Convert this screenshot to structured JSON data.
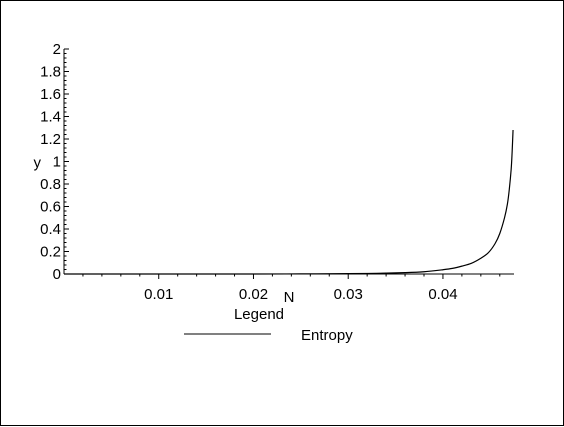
{
  "chart_data": {
    "type": "line",
    "xlabel": "N",
    "ylabel": "y",
    "xlim": [
      0,
      0.0475
    ],
    "ylim": [
      0,
      2
    ],
    "x_ticks": [
      0.01,
      0.02,
      0.03,
      0.04
    ],
    "x_tick_labels": [
      "0.01",
      "0.02",
      "0.03",
      "0.04"
    ],
    "y_ticks": [
      0,
      0.2,
      0.4,
      0.6,
      0.8,
      1,
      1.2,
      1.4,
      1.6,
      1.8,
      2
    ],
    "y_tick_labels": [
      "0",
      "0.2",
      "0.4",
      "0.6",
      "0.8",
      "1",
      "1.2",
      "1.4",
      "1.6",
      "1.8",
      "2"
    ],
    "grid": false,
    "legend": {
      "title": "Legend",
      "placement": "bottom-center"
    },
    "series": [
      {
        "name": "Entropy",
        "color": "#000000",
        "x": [
          0,
          0.01,
          0.02,
          0.025,
          0.03,
          0.033,
          0.036,
          0.038,
          0.04,
          0.041,
          0.042,
          0.043,
          0.044,
          0.0448,
          0.0455,
          0.046,
          0.0465,
          0.0468,
          0.047,
          0.0472,
          0.0473,
          0.0474
        ],
        "y": [
          0,
          0,
          0,
          0.001,
          0.003,
          0.006,
          0.012,
          0.02,
          0.038,
          0.05,
          0.07,
          0.095,
          0.14,
          0.19,
          0.27,
          0.36,
          0.5,
          0.62,
          0.75,
          0.93,
          1.08,
          1.28
        ]
      }
    ]
  }
}
